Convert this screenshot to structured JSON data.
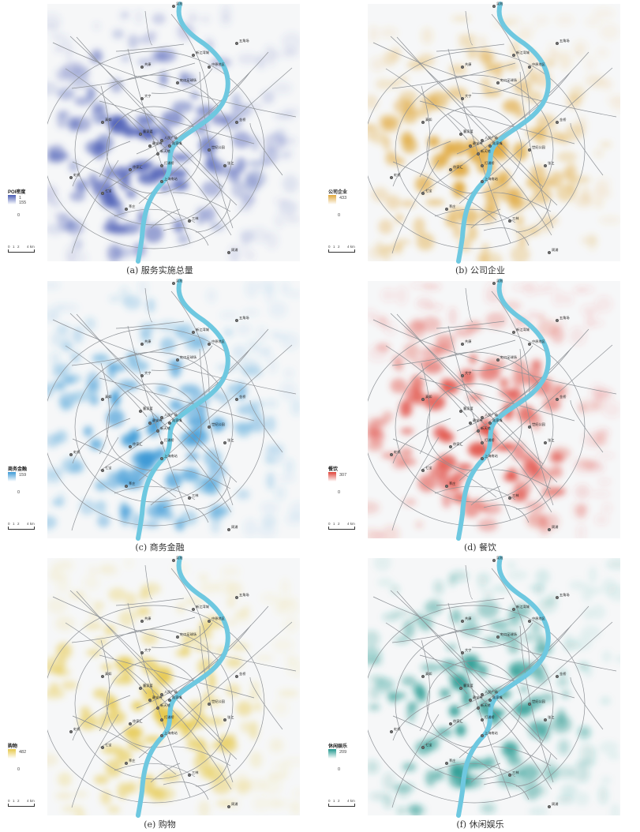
{
  "panels": [
    {
      "caption": "(a) 服务实施总量",
      "legend_title": "POI密度",
      "legend_max": "1 155",
      "legend_min": "0",
      "color": "#4a5cb5"
    },
    {
      "caption": "(b) 公司企业",
      "legend_title": "公司企业",
      "legend_max": "433",
      "legend_min": "0",
      "color": "#e0a83c"
    },
    {
      "caption": "(c) 商务金融",
      "legend_title": "商务金融",
      "legend_max": "159",
      "legend_min": "0",
      "color": "#3d9ad6"
    },
    {
      "caption": "(d) 餐饮",
      "legend_title": "餐饮",
      "legend_max": "307",
      "legend_min": "0",
      "color": "#e0443a"
    },
    {
      "caption": "(e) 购物",
      "legend_title": "购物",
      "legend_max": "482",
      "legend_min": "0",
      "color": "#e6c84a"
    },
    {
      "caption": "(f) 休闲娱乐",
      "legend_title": "休闲娱乐",
      "legend_max": "209",
      "legend_min": "0",
      "color": "#21978e"
    }
  ],
  "scale_labels": [
    "0",
    "1",
    "2",
    "4 km"
  ],
  "river_color": "#6ec8e0",
  "places": [
    "吴淞",
    "五角场",
    "新江湾城",
    "中原地区",
    "共康",
    "虹口足球场",
    "大宁",
    "真如",
    "曹家渡",
    "静安寺",
    "陆家嘴",
    "人民广场",
    "徐家汇",
    "打浦桥",
    "新天地",
    "世纪公园",
    "金桥",
    "张江",
    "虹桥",
    "七宝",
    "莘庄",
    "上海南站",
    "三林",
    "周浦"
  ]
}
